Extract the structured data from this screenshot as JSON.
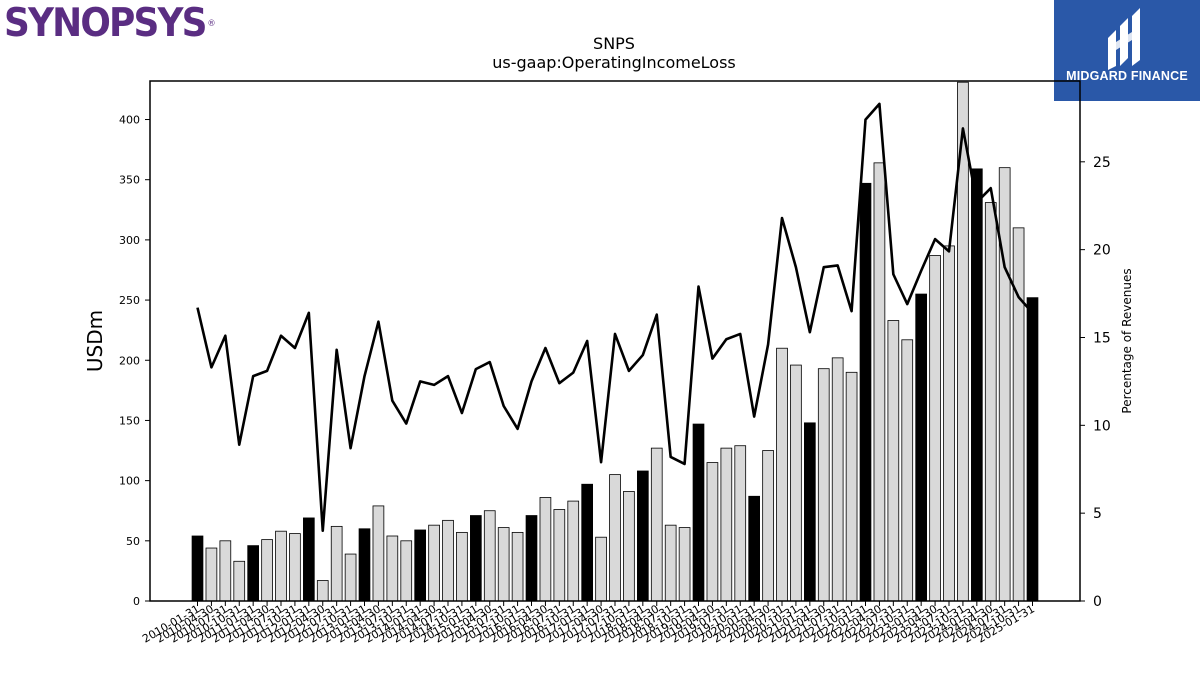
{
  "branding": {
    "company_logo_text": "SYNOPSYS",
    "company_logo_mark": "®",
    "publisher_logo_text": "MIDGARD FINANCE",
    "publisher_logo_icon": "midgard-m-icon",
    "company_color": "#5a2d82",
    "publisher_color": "#2a58a8"
  },
  "chart_data": {
    "type": "bar",
    "title": "SNPS",
    "subtitle": "us-gaap:OperatingIncomeLoss",
    "ylabel": "USDm",
    "y2label": "Percentage of Revenues",
    "ylim": [
      0,
      432
    ],
    "y2lim": [
      0,
      29.6
    ],
    "yticks": [
      0,
      50,
      100,
      150,
      200,
      250,
      300,
      350,
      400
    ],
    "y2ticks": [
      0,
      5,
      10,
      15,
      20,
      25
    ],
    "categories": [
      "2010-01-31",
      "2010-04-30",
      "2010-07-31",
      "2010-10-31",
      "2011-01-31",
      "2011-04-30",
      "2011-07-31",
      "2011-10-31",
      "2012-01-31",
      "2012-04-30",
      "2012-07-31",
      "2012-10-31",
      "2013-01-31",
      "2013-04-30",
      "2013-07-31",
      "2013-10-31",
      "2014-01-31",
      "2014-04-30",
      "2014-07-31",
      "2014-10-31",
      "2015-01-31",
      "2015-04-30",
      "2015-07-31",
      "2015-10-31",
      "2016-01-31",
      "2016-04-30",
      "2016-07-31",
      "2016-10-31",
      "2017-01-31",
      "2017-04-30",
      "2017-07-31",
      "2017-10-31",
      "2018-01-31",
      "2018-04-30",
      "2018-07-31",
      "2018-10-31",
      "2019-01-31",
      "2019-04-30",
      "2019-07-31",
      "2019-10-31",
      "2020-01-31",
      "2020-04-30",
      "2020-07-31",
      "2020-10-31",
      "2021-01-31",
      "2021-04-30",
      "2021-07-31",
      "2021-10-31",
      "2022-01-31",
      "2022-04-30",
      "2022-07-31",
      "2022-10-31",
      "2023-01-31",
      "2023-04-30",
      "2023-07-31",
      "2023-10-31",
      "2024-01-31",
      "2024-04-30",
      "2024-07-31",
      "2024-10-31",
      "2025-01-31"
    ],
    "series": [
      {
        "name": "",
        "kind": "bar",
        "values": [
          54,
          44,
          50,
          33,
          46,
          51,
          58,
          56,
          69,
          17,
          62,
          39,
          60,
          79,
          54,
          50,
          59,
          63,
          67,
          57,
          71,
          75,
          61,
          57,
          71,
          86,
          76,
          83,
          97,
          53,
          105,
          91,
          108,
          127,
          63,
          61,
          147,
          115,
          127,
          129,
          87,
          125,
          210,
          196,
          148,
          193,
          202,
          190,
          347,
          364,
          233,
          217,
          255,
          287,
          295,
          431,
          359,
          331,
          360,
          310,
          252
        ],
        "q1_color": "#000000",
        "other_color": "#d9d9d9"
      },
      {
        "name": "",
        "kind": "line",
        "axis": "secondary",
        "values": [
          16.7,
          13.3,
          15.1,
          8.9,
          12.8,
          13.1,
          15.1,
          14.4,
          16.4,
          4.0,
          14.3,
          8.7,
          12.8,
          15.9,
          11.4,
          10.1,
          12.5,
          12.3,
          12.8,
          10.7,
          13.2,
          13.6,
          11.1,
          9.8,
          12.5,
          14.4,
          12.4,
          13.0,
          14.8,
          7.9,
          15.2,
          13.1,
          14.0,
          16.3,
          8.2,
          7.8,
          17.9,
          13.8,
          14.9,
          15.2,
          10.5,
          14.6,
          21.8,
          19.0,
          15.3,
          19.0,
          19.1,
          16.5,
          27.4,
          28.3,
          18.6,
          16.9,
          18.8,
          20.6,
          19.9,
          26.9,
          22.7,
          23.5,
          19.0,
          17.3,
          16.4
        ]
      }
    ],
    "grid": false,
    "legend": "none"
  }
}
